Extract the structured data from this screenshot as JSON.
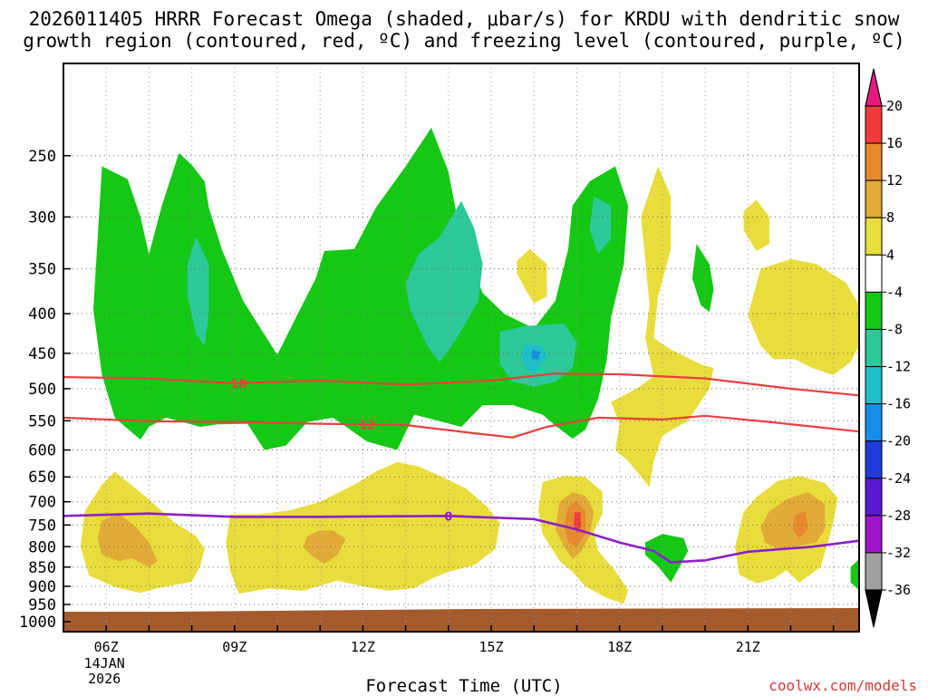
{
  "title_line1": "2026011405 HRRR Forecast Omega (shaded, μbar/s) for KRDU with dendritic snow",
  "title_line2": "growth region (contoured, red, ºC) and freezing level (contoured, purple, ºC)",
  "credit": "coolwx.com/models",
  "chart_data": {
    "type": "time-height contour",
    "title": "2026011405 HRRR Forecast Omega (shaded, μbar/s) for KRDU with dendritic snow growth region (contoured, red, ºC) and freezing level (contoured, purple, ºC)",
    "xlabel": "Forecast Time (UTC)",
    "ylabel": "",
    "x_range_hours_utc": [
      5,
      23.6
    ],
    "y_axis": "pressure (hPa), log scale, inverted",
    "ylim": [
      1030,
      190
    ],
    "x_ticks": [
      {
        "hour": 6,
        "label": "06Z",
        "sublabel1": "14JAN",
        "sublabel2": "2026"
      },
      {
        "hour": 9,
        "label": "09Z"
      },
      {
        "hour": 12,
        "label": "12Z"
      },
      {
        "hour": 15,
        "label": "15Z"
      },
      {
        "hour": 18,
        "label": "18Z"
      },
      {
        "hour": 21,
        "label": "21Z"
      }
    ],
    "y_ticks": [
      250,
      300,
      350,
      400,
      450,
      500,
      550,
      600,
      650,
      700,
      750,
      800,
      850,
      900,
      950,
      1000
    ],
    "gridlines": true,
    "colorbar": {
      "levels": [
        -36,
        -32,
        -28,
        -24,
        -20,
        -16,
        -12,
        -8,
        -4,
        4,
        8,
        12,
        16,
        20
      ],
      "labels": [
        "20",
        "16",
        "12",
        "8",
        "4",
        "-4",
        "-8",
        "-12",
        "-16",
        "-20",
        "-24",
        "-28",
        "-32",
        "-36"
      ],
      "bands_top_to_bottom": [
        {
          "range": "16 to 20",
          "color": "#f33a3a"
        },
        {
          "range": "12 to 16",
          "color": "#e8892e"
        },
        {
          "range": "8 to 12",
          "color": "#e2ab37"
        },
        {
          "range": "4 to 8",
          "color": "#e8dd3c"
        },
        {
          "range": "-4 to 4",
          "color": "#ffffff"
        },
        {
          "range": "-8 to -4",
          "color": "#14c814"
        },
        {
          "range": "-12 to -8",
          "color": "#2ec89a"
        },
        {
          "range": "-16 to -12",
          "color": "#1ebfc8"
        },
        {
          "range": "-20 to -16",
          "color": "#168ee8"
        },
        {
          "range": "-24 to -20",
          "color": "#1e3cdc"
        },
        {
          "range": "-28 to -24",
          "color": "#5a19d2"
        },
        {
          "range": "-32 to -28",
          "color": "#a014c8"
        },
        {
          "range": "-36 to -32",
          "color": "#a0a0a0"
        }
      ],
      "upper_triangle_color": "#e6197d",
      "lower_triangle_color": "#000000"
    },
    "omega_features": [
      {
        "name": "upper rising-motion region",
        "shade": "green",
        "value_range": [
          -12,
          -4
        ],
        "hours": [
          5.9,
          18.2
        ],
        "pressure_hPa": [
          230,
          620
        ]
      },
      {
        "name": "strongest ascent core",
        "shade": "blue",
        "value": -16,
        "hour": 16.0,
        "pressure_hPa": 450
      },
      {
        "name": "low-level subsidence 06Z",
        "shade": "yellow/orange",
        "value_range": [
          4,
          12
        ],
        "hours": [
          5.6,
          8.3
        ],
        "pressure_hPa": [
          650,
          900
        ]
      },
      {
        "name": "low-level subsidence 12Z",
        "shade": "yellow/orange",
        "value_range": [
          4,
          12
        ],
        "hours": [
          8.9,
          15.2
        ],
        "pressure_hPa": [
          640,
          900
        ]
      },
      {
        "name": "low-level subsidence peak",
        "shade": "orange/red",
        "value_range": [
          4,
          20
        ],
        "hour": 17.0,
        "pressure_hPa": [
          650,
          950
        ]
      },
      {
        "name": "low-level subsidence 22Z",
        "shade": "yellow/orange",
        "value_range": [
          4,
          16
        ],
        "hours": [
          20.8,
          23.2
        ],
        "pressure_hPa": [
          650,
          900
        ]
      }
    ],
    "dgz_contours": [
      {
        "label": "18",
        "value_c": -18,
        "color": "#e8403c",
        "points": [
          [
            5,
            483
          ],
          [
            7,
            485
          ],
          [
            9,
            492
          ],
          [
            11,
            488
          ],
          [
            13,
            494
          ],
          [
            15,
            488
          ],
          [
            16.5,
            478
          ],
          [
            18,
            479
          ],
          [
            20,
            485
          ],
          [
            22,
            500
          ],
          [
            23.6,
            510
          ]
        ]
      },
      {
        "label": "12",
        "value_c": -12,
        "color": "#e8403c",
        "points": [
          [
            5,
            545
          ],
          [
            7,
            551
          ],
          [
            9,
            552
          ],
          [
            11,
            555
          ],
          [
            13,
            557
          ],
          [
            14.5,
            570
          ],
          [
            15.5,
            578
          ],
          [
            16.3,
            560
          ],
          [
            17.5,
            545
          ],
          [
            19,
            548
          ],
          [
            20,
            542
          ],
          [
            21.5,
            552
          ],
          [
            23.6,
            568
          ]
        ]
      }
    ],
    "freezing_level": {
      "label": "0",
      "value_c": 0,
      "color": "#8e1fc9",
      "points": [
        [
          5,
          730
        ],
        [
          7,
          725
        ],
        [
          9,
          732
        ],
        [
          11,
          732
        ],
        [
          14,
          730
        ],
        [
          16,
          737
        ],
        [
          17,
          760
        ],
        [
          18,
          790
        ],
        [
          18.8,
          810
        ],
        [
          19.2,
          838
        ],
        [
          20,
          833
        ],
        [
          21,
          812
        ],
        [
          22.5,
          800
        ],
        [
          23.6,
          786
        ]
      ]
    },
    "terrain_color": "#a55a2c"
  }
}
